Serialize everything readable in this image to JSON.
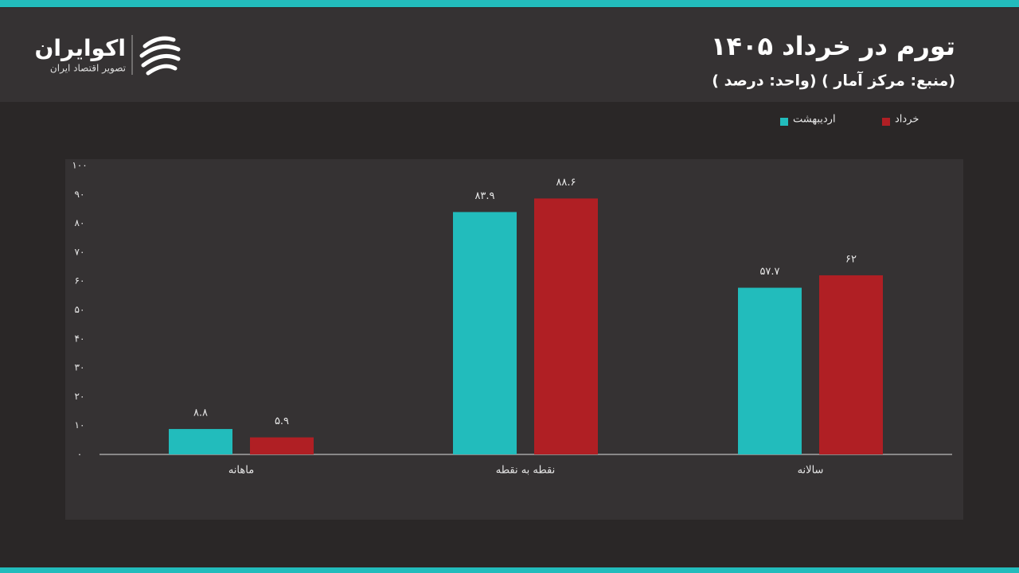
{
  "logo": {
    "name": "اکوایران",
    "tagline": "تصویر اقتصاد ایران"
  },
  "chart_data": {
    "type": "bar",
    "title": "تورم در خرداد ۱۴۰۵",
    "subtitle": "( واحد: درصد) ( منبع: مرکز آمار)",
    "categories": [
      "ماهانه",
      "نقطه به نقطه",
      "سالانه"
    ],
    "series": [
      {
        "name": "اردیبهشت",
        "color": "#22bcbc",
        "values": [
          8.8,
          83.9,
          57.7
        ],
        "value_labels": [
          "۸.۸",
          "۸۳.۹",
          "۵۷.۷"
        ]
      },
      {
        "name": "خرداد",
        "color": "#b01f24",
        "values": [
          5.9,
          88.6,
          62
        ],
        "value_labels": [
          "۵.۹",
          "۸۸.۶",
          "۶۲"
        ]
      }
    ],
    "ylim": [
      0,
      100
    ],
    "yticks": [
      {
        "value": 0,
        "label": "۰"
      },
      {
        "value": 10,
        "label": "۱۰"
      },
      {
        "value": 20,
        "label": "۲۰"
      },
      {
        "value": 30,
        "label": "۳۰"
      },
      {
        "value": 40,
        "label": "۴۰"
      },
      {
        "value": 50,
        "label": "۵۰"
      },
      {
        "value": 60,
        "label": "۶۰"
      },
      {
        "value": 70,
        "label": "۷۰"
      },
      {
        "value": 80,
        "label": "۸۰"
      },
      {
        "value": 90,
        "label": "۹۰"
      },
      {
        "value": 100,
        "label": "۱۰۰"
      }
    ],
    "legend": "top-right"
  }
}
